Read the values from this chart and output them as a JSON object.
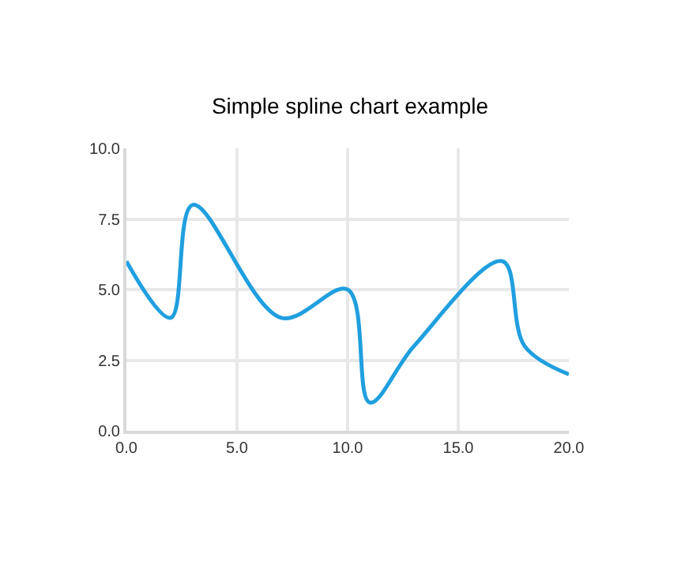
{
  "chart_data": {
    "type": "line",
    "title": "Simple spline chart example",
    "x": [
      0,
      2,
      3,
      7,
      10,
      11,
      13,
      17,
      18,
      20
    ],
    "series": [
      {
        "color": "#209fdf",
        "values": [
          6,
          4,
          8,
          4,
          5,
          1,
          3,
          6,
          3,
          2
        ]
      }
    ],
    "xlim": [
      0,
      20
    ],
    "xticks": [
      {
        "value": 0,
        "label": "0.0"
      },
      {
        "value": 5,
        "label": "5.0"
      },
      {
        "value": 10,
        "label": "10.0"
      },
      {
        "value": 15,
        "label": "15.0"
      },
      {
        "value": 20,
        "label": "20.0"
      }
    ],
    "ylim": [
      0,
      10
    ],
    "yticks": [
      {
        "value": 0,
        "label": "0.0"
      },
      {
        "value": 2.5,
        "label": "2.5"
      },
      {
        "value": 5,
        "label": "5.0"
      },
      {
        "value": 7.5,
        "label": "7.5"
      },
      {
        "value": 10,
        "label": "10.0"
      }
    ],
    "grid": true,
    "marker": "none",
    "line_style": "solid"
  }
}
